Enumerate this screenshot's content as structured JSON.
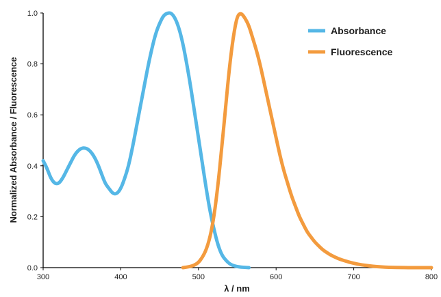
{
  "chart_data": {
    "type": "line",
    "title": "",
    "xlabel": "λ / nm",
    "ylabel": "Normalized Absorbance / Fluorescence",
    "xlim": [
      300,
      800
    ],
    "ylim": [
      0.0,
      1.0
    ],
    "x_ticks": [
      "300",
      "400",
      "500",
      "600",
      "700",
      "800"
    ],
    "y_ticks": [
      "0.0",
      "0.2",
      "0.4",
      "0.6",
      "0.8",
      "1.0"
    ],
    "grid": false,
    "legend_position": "top-right",
    "series": [
      {
        "name": "Absorbance",
        "color": "#55b7e6",
        "x": [
          300,
          305,
          310,
          315,
          320,
          325,
          330,
          335,
          340,
          345,
          350,
          355,
          360,
          365,
          370,
          375,
          380,
          385,
          390,
          395,
          400,
          405,
          410,
          415,
          420,
          425,
          430,
          435,
          440,
          445,
          450,
          455,
          460,
          465,
          470,
          475,
          480,
          485,
          490,
          495,
          500,
          505,
          510,
          515,
          520,
          525,
          530,
          535,
          540,
          545,
          550,
          555,
          560,
          565
        ],
        "values": [
          0.42,
          0.39,
          0.35,
          0.33,
          0.33,
          0.35,
          0.38,
          0.41,
          0.44,
          0.46,
          0.47,
          0.47,
          0.46,
          0.44,
          0.41,
          0.37,
          0.33,
          0.31,
          0.29,
          0.29,
          0.31,
          0.35,
          0.4,
          0.47,
          0.55,
          0.63,
          0.71,
          0.79,
          0.86,
          0.92,
          0.96,
          0.99,
          1.0,
          1.0,
          0.98,
          0.94,
          0.88,
          0.8,
          0.71,
          0.61,
          0.51,
          0.41,
          0.31,
          0.22,
          0.15,
          0.09,
          0.05,
          0.03,
          0.015,
          0.008,
          0.004,
          0.002,
          0.001,
          0.0
        ]
      },
      {
        "name": "Fluorescence",
        "color": "#f39b3e",
        "x": [
          480,
          485,
          490,
          495,
          500,
          505,
          510,
          515,
          520,
          525,
          530,
          535,
          540,
          545,
          550,
          555,
          560,
          565,
          570,
          575,
          580,
          585,
          590,
          595,
          600,
          605,
          610,
          615,
          620,
          625,
          630,
          635,
          640,
          645,
          650,
          655,
          660,
          665,
          670,
          680,
          690,
          700,
          710,
          720,
          730,
          740,
          750,
          760,
          770,
          780,
          790,
          800
        ],
        "values": [
          0.0,
          0.002,
          0.005,
          0.01,
          0.02,
          0.04,
          0.07,
          0.12,
          0.2,
          0.32,
          0.47,
          0.63,
          0.79,
          0.91,
          0.99,
          1.0,
          0.98,
          0.95,
          0.9,
          0.85,
          0.79,
          0.72,
          0.65,
          0.58,
          0.51,
          0.44,
          0.38,
          0.33,
          0.28,
          0.24,
          0.2,
          0.17,
          0.14,
          0.12,
          0.1,
          0.085,
          0.07,
          0.06,
          0.05,
          0.035,
          0.025,
          0.017,
          0.011,
          0.007,
          0.004,
          0.002,
          0.001,
          0.0005,
          0.0,
          0.0,
          0.0,
          0.0
        ]
      }
    ]
  }
}
